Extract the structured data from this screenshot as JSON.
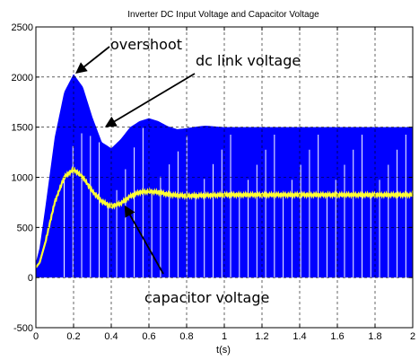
{
  "chart_data": {
    "type": "line",
    "title": "Inverter DC Input Voltage and Capacitor Voltage",
    "xlabel": "t(s)",
    "ylabel": "",
    "xlim": [
      0,
      2
    ],
    "ylim": [
      -500,
      2500
    ],
    "xticks": [
      "0",
      "0.2",
      "0.4",
      "0.6",
      "0.8",
      "1",
      "1.2",
      "1.4",
      "1.6",
      "1.8",
      "2"
    ],
    "yticks": [
      "-500",
      "0",
      "500",
      "1000",
      "1500",
      "2000",
      "2500"
    ],
    "grid": "dashed",
    "series": [
      {
        "color": "#0000ff",
        "style": "pwm-filled",
        "envelope": {
          "x": [
            0,
            0.02,
            0.05,
            0.1,
            0.15,
            0.2,
            0.25,
            0.3,
            0.35,
            0.4,
            0.45,
            0.5,
            0.55,
            0.6,
            0.65,
            0.7,
            0.75,
            0.8,
            0.85,
            0.9,
            1.0,
            1.2,
            1.5,
            2.0
          ],
          "y": [
            150,
            300,
            700,
            1400,
            1850,
            2030,
            1900,
            1600,
            1350,
            1290,
            1380,
            1500,
            1560,
            1590,
            1560,
            1510,
            1480,
            1490,
            1505,
            1515,
            1500,
            1500,
            1500,
            1500
          ]
        }
      },
      {
        "color": "#ffff33",
        "style": "line",
        "x": [
          0,
          0.02,
          0.05,
          0.1,
          0.15,
          0.2,
          0.25,
          0.3,
          0.35,
          0.4,
          0.45,
          0.5,
          0.55,
          0.6,
          0.65,
          0.7,
          0.75,
          0.8,
          0.9,
          1.0,
          1.2,
          1.5,
          2.0
        ],
        "y": [
          100,
          150,
          350,
          750,
          1000,
          1080,
          1000,
          860,
          760,
          710,
          740,
          810,
          850,
          860,
          850,
          830,
          820,
          815,
          820,
          825,
          825,
          825,
          825
        ]
      }
    ],
    "annotations": [
      {
        "text": "overshoot",
        "target": [
          0.2,
          2030
        ]
      },
      {
        "text": "dc link voltage",
        "target": [
          0.4,
          1530
        ]
      },
      {
        "text": "capacitor voltage",
        "target": [
          0.5,
          720
        ]
      }
    ]
  }
}
